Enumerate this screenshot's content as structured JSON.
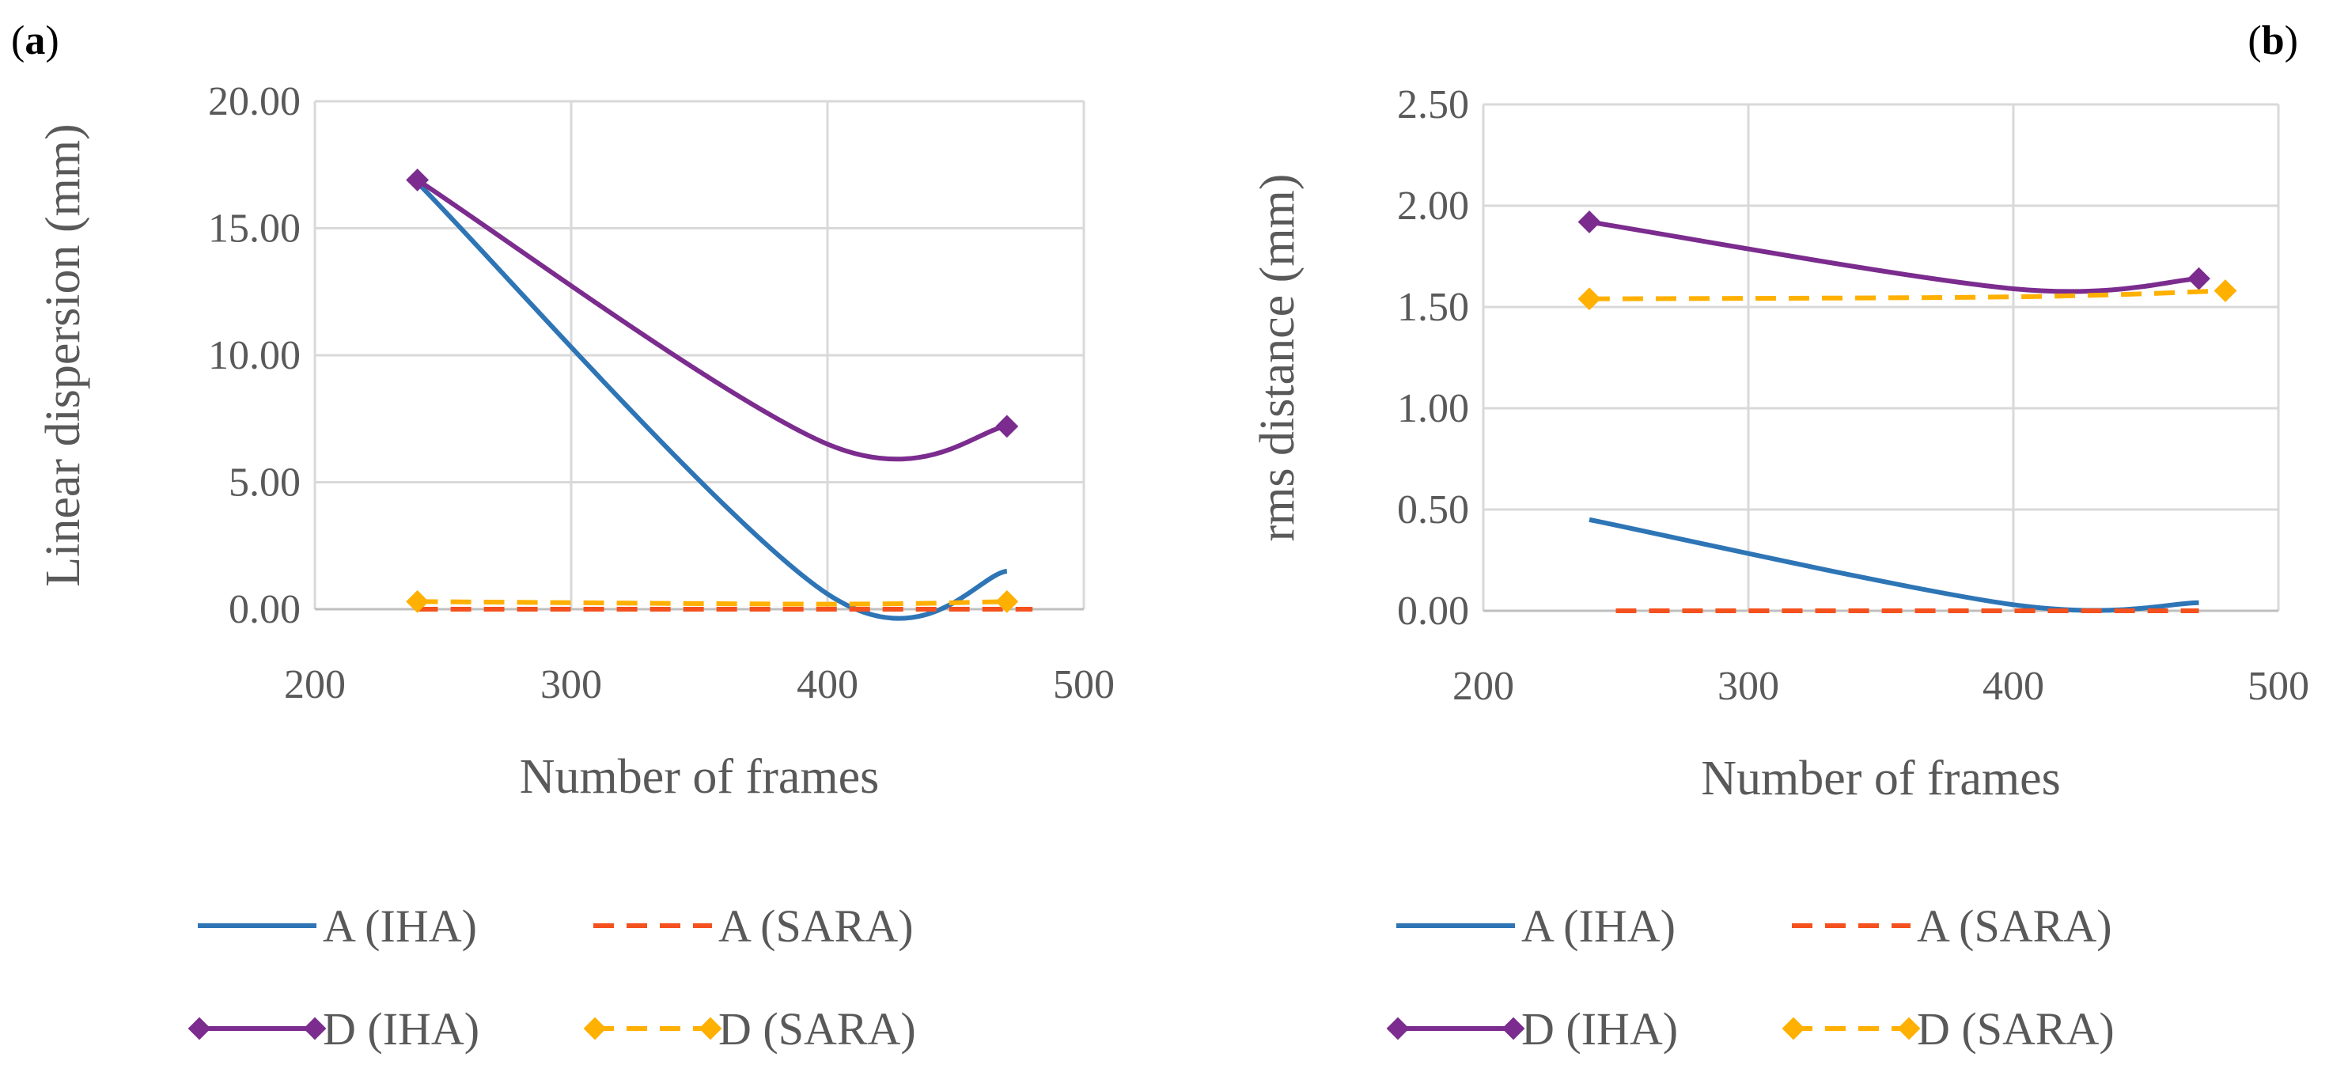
{
  "chart_data": [
    {
      "panel_label": "(a)",
      "type": "line",
      "xlabel": "Number of frames",
      "ylabel": "Linear dispersion  (mm)",
      "xlim": [
        200,
        500
      ],
      "ylim": [
        0,
        20
      ],
      "xticks": [
        200,
        300,
        400,
        500
      ],
      "yticks": [
        0,
        5,
        10,
        15,
        20
      ],
      "xtick_labels": [
        "200",
        "300",
        "400",
        "500"
      ],
      "ytick_labels": [
        "0.00",
        "5.00",
        "10.00",
        "15.00",
        "20.00"
      ],
      "grid": true,
      "legend_position": "bottom",
      "series": [
        {
          "name": "A (IHA)",
          "color": "#2E75B6",
          "dash": "solid",
          "marker": "none",
          "x": [
            240,
            400,
            470
          ],
          "y": [
            16.8,
            0.6,
            1.5
          ]
        },
        {
          "name": "A (SARA)",
          "color": "#F4511E",
          "dash": "dashed",
          "marker": "none",
          "x": [
            240,
            400,
            480
          ],
          "y": [
            0.0,
            0.0,
            0.0
          ]
        },
        {
          "name": "D (IHA)",
          "color": "#7B2C8E",
          "dash": "solid",
          "marker": "diamond",
          "x": [
            240,
            400,
            470
          ],
          "y": [
            16.9,
            6.5,
            7.2
          ]
        },
        {
          "name": "D (SARA)",
          "color": "#FFB000",
          "dash": "dashed",
          "marker": "diamond",
          "x": [
            240,
            400,
            470
          ],
          "y": [
            0.3,
            0.2,
            0.3
          ]
        }
      ]
    },
    {
      "panel_label": "(b)",
      "type": "line",
      "xlabel": "Number of frames",
      "ylabel": "rms distance (mm)",
      "xlim": [
        200,
        500
      ],
      "ylim": [
        0,
        2.5
      ],
      "xticks": [
        200,
        300,
        400,
        500
      ],
      "yticks": [
        0,
        0.5,
        1.0,
        1.5,
        2.0,
        2.5
      ],
      "xtick_labels": [
        "200",
        "300",
        "400",
        "500"
      ],
      "ytick_labels": [
        "0.00",
        "0.50",
        "1.00",
        "1.50",
        "2.00",
        "2.50"
      ],
      "grid": true,
      "legend_position": "bottom",
      "series": [
        {
          "name": "A (IHA)",
          "color": "#2E75B6",
          "dash": "solid",
          "marker": "none",
          "x": [
            240,
            400,
            470
          ],
          "y": [
            0.45,
            0.03,
            0.04
          ]
        },
        {
          "name": "A (SARA)",
          "color": "#F4511E",
          "dash": "dashed",
          "marker": "none",
          "x": [
            250,
            400,
            470
          ],
          "y": [
            0.0,
            0.0,
            0.0
          ]
        },
        {
          "name": "D (IHA)",
          "color": "#7B2C8E",
          "dash": "solid",
          "marker": "diamond",
          "x": [
            240,
            400,
            470
          ],
          "y": [
            1.92,
            1.59,
            1.64
          ]
        },
        {
          "name": "D (SARA)",
          "color": "#FFB000",
          "dash": "dashed",
          "marker": "diamond",
          "x": [
            240,
            400,
            480
          ],
          "y": [
            1.54,
            1.55,
            1.58
          ]
        }
      ]
    }
  ]
}
